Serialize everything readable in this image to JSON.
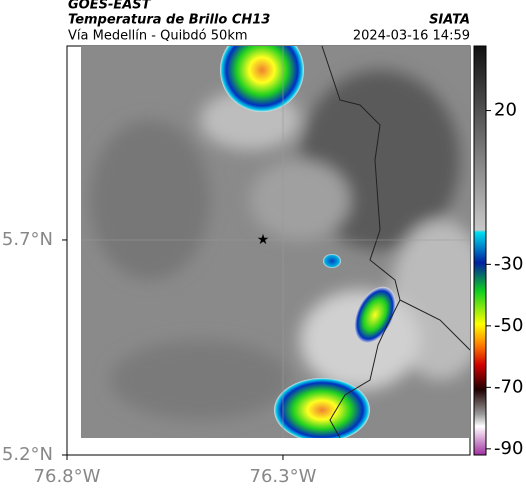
{
  "header": {
    "satellite": "GOES-EAST",
    "product": "Temperatura de Brillo CH13",
    "source": "SIATA",
    "route": "Vía Medellín - Quibdó 50km",
    "datetime": "2024-03-16 14:59"
  },
  "map": {
    "xlim": [
      -76.8,
      -75.867
    ],
    "ylim": [
      5.2,
      6.151
    ],
    "xticks": [
      {
        "value": -76.8,
        "label": "76.8°W"
      },
      {
        "value": -76.3,
        "label": "76.3°W"
      }
    ],
    "yticks": [
      {
        "value": 5.2,
        "label": "5.2°N"
      },
      {
        "value": 5.7,
        "label": "5.7°N"
      }
    ],
    "colorbar": {
      "lim": [
        41,
        -92
      ],
      "ticks": [
        20,
        -30,
        -50,
        -70,
        -90
      ]
    }
  }
}
